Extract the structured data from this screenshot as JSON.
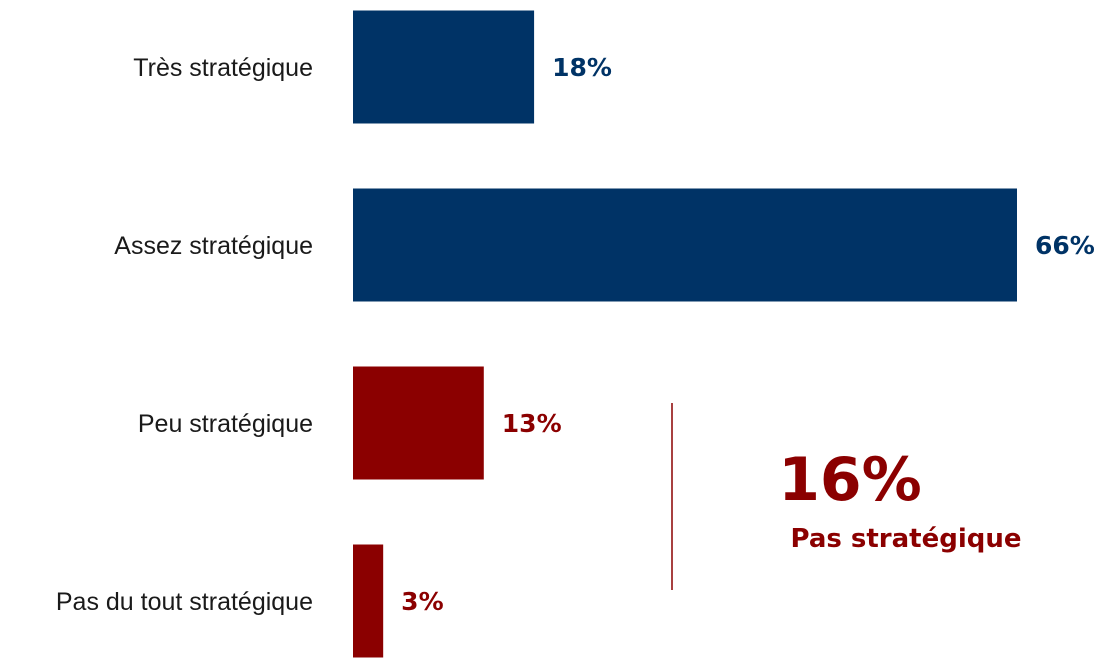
{
  "chart_data": {
    "type": "bar",
    "orientation": "horizontal",
    "categories": [
      "Très stratégique",
      "Assez stratégique",
      "Peu stratégique",
      "Pas du tout stratégique"
    ],
    "values": [
      18,
      66,
      13,
      3
    ],
    "value_labels": [
      "18%",
      "66%",
      "13%",
      "3%"
    ],
    "bar_colors": [
      "#003366",
      "#003366",
      "#8b0000",
      "#8b0000"
    ],
    "xlim": [
      0,
      66
    ],
    "grid": false,
    "legend": "none"
  },
  "summary": {
    "value": "16%",
    "label": "Pas stratégique",
    "color": "#8b0000",
    "divider_color": "#8b0000"
  }
}
